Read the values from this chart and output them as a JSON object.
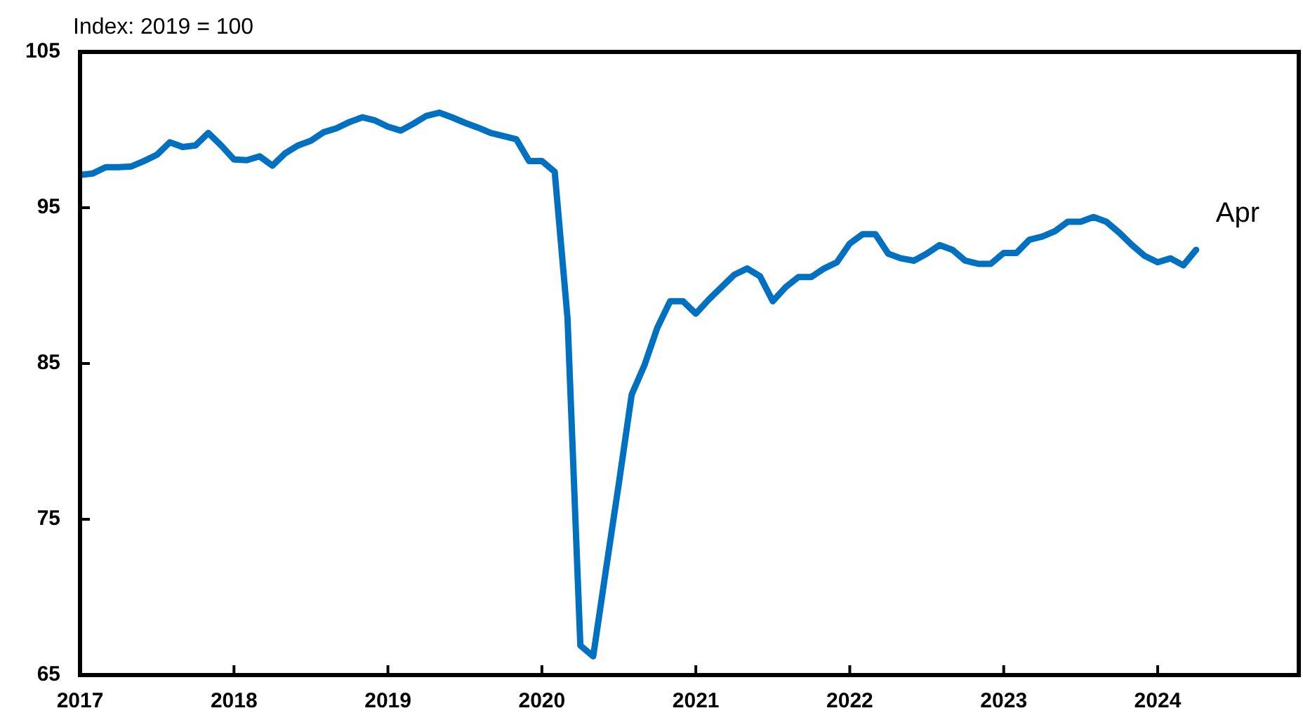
{
  "chart_data": {
    "type": "line",
    "ylabel": "Index: 2019 = 100",
    "x": [
      "2017-01",
      "2017-02",
      "2017-03",
      "2017-04",
      "2017-05",
      "2017-06",
      "2017-07",
      "2017-08",
      "2017-09",
      "2017-10",
      "2017-11",
      "2017-12",
      "2018-01",
      "2018-02",
      "2018-03",
      "2018-04",
      "2018-05",
      "2018-06",
      "2018-07",
      "2018-08",
      "2018-09",
      "2018-10",
      "2018-11",
      "2018-12",
      "2019-01",
      "2019-02",
      "2019-03",
      "2019-04",
      "2019-05",
      "2019-06",
      "2019-07",
      "2019-08",
      "2019-09",
      "2019-10",
      "2019-11",
      "2019-12",
      "2020-01",
      "2020-02",
      "2020-03",
      "2020-04",
      "2020-05",
      "2020-06",
      "2020-07",
      "2020-08",
      "2020-09",
      "2020-10",
      "2020-11",
      "2020-12",
      "2021-01",
      "2021-02",
      "2021-03",
      "2021-04",
      "2021-05",
      "2021-06",
      "2021-07",
      "2021-08",
      "2021-09",
      "2021-10",
      "2021-11",
      "2021-12",
      "2022-01",
      "2022-02",
      "2022-03",
      "2022-04",
      "2022-05",
      "2022-06",
      "2022-07",
      "2022-08",
      "2022-09",
      "2022-10",
      "2022-11",
      "2022-12",
      "2023-01",
      "2023-02",
      "2023-03",
      "2023-04",
      "2023-05",
      "2023-06",
      "2023-07",
      "2023-08",
      "2023-09",
      "2023-10",
      "2023-11",
      "2023-12",
      "2024-01",
      "2024-02",
      "2024-03",
      "2024-04"
    ],
    "series": [
      {
        "color": "#0070c0",
        "values": [
          97.1,
          97.2,
          97.6,
          97.6,
          97.65,
          98.0,
          98.4,
          99.2,
          98.9,
          99.0,
          99.8,
          99.0,
          98.1,
          98.05,
          98.3,
          97.7,
          98.5,
          99.0,
          99.3,
          99.85,
          100.1,
          100.5,
          100.8,
          100.6,
          100.2,
          99.95,
          100.4,
          100.9,
          101.1,
          100.8,
          100.45,
          100.15,
          99.8,
          99.6,
          99.4,
          98.0,
          98.0,
          97.3,
          87.9,
          66.9,
          66.2,
          71.8,
          77.3,
          83.0,
          84.9,
          87.3,
          89.0,
          89.0,
          88.2,
          89.1,
          89.9,
          90.7,
          91.1,
          90.6,
          89.0,
          89.9,
          90.55,
          90.55,
          91.1,
          91.5,
          92.7,
          93.3,
          93.3,
          92.05,
          91.75,
          91.6,
          92.05,
          92.6,
          92.3,
          91.6,
          91.4,
          91.4,
          92.1,
          92.1,
          92.95,
          93.15,
          93.5,
          94.1,
          94.1,
          94.4,
          94.1,
          93.4,
          92.6,
          91.9,
          91.5,
          91.75,
          91.3,
          92.3
        ]
      }
    ],
    "xlim": [
      "2017-01",
      "2024-12"
    ],
    "xticks": [
      {
        "value": "2017-01",
        "label": "2017"
      },
      {
        "value": "2018-01",
        "label": "2018"
      },
      {
        "value": "2019-01",
        "label": "2019"
      },
      {
        "value": "2020-01",
        "label": "2020"
      },
      {
        "value": "2021-01",
        "label": "2021"
      },
      {
        "value": "2022-01",
        "label": "2022"
      },
      {
        "value": "2023-01",
        "label": "2023"
      },
      {
        "value": "2024-01",
        "label": "2024"
      }
    ],
    "ylim": [
      65,
      105
    ],
    "yticks": [
      65,
      75,
      85,
      95,
      105
    ],
    "annotations": [
      {
        "text": "Apr",
        "x": "2024-04",
        "y": 92.3
      }
    ],
    "grid": false,
    "legend": false,
    "marker": "none",
    "line_style": "solid"
  }
}
